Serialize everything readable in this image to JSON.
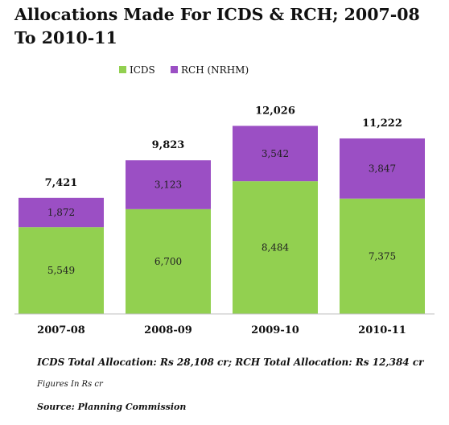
{
  "title": "Allocations Made For ICDS & RCH; 2007-08 To 2010-11",
  "chart_data": {
    "type": "bar",
    "stacked": true,
    "categories": [
      "2007-08",
      "2008-09",
      "2009-10",
      "2010-11"
    ],
    "series": [
      {
        "name": "ICDS",
        "color": "#92d050",
        "values": [
          5549,
          6700,
          8484,
          7375
        ]
      },
      {
        "name": "RCH (NRHM)",
        "color": "#9b4fc4",
        "values": [
          1872,
          3123,
          3542,
          3847
        ]
      }
    ],
    "value_labels": [
      [
        "5,549",
        "6,700",
        "8,484",
        "7,375"
      ],
      [
        "1,872",
        "3,123",
        "3,542",
        "3,847"
      ]
    ],
    "totals": [
      7421,
      9823,
      12026,
      11222
    ],
    "total_labels": [
      "7,421",
      "9,823",
      "12,026",
      "11,222"
    ],
    "legend_position": "top-center",
    "grid": false,
    "ylim": [
      0,
      14000
    ]
  },
  "notes": {
    "total": "ICDS Total Allocation:  Rs 28,108 cr; RCH Total Allocation:  Rs 12,384 cr",
    "units": "Figures In Rs cr",
    "source": "Source: Planning Commission"
  }
}
